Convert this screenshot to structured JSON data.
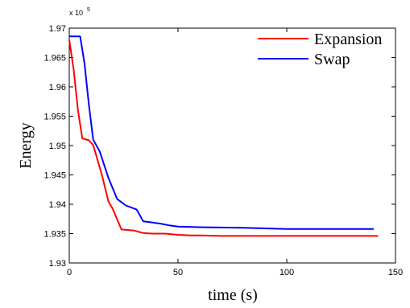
{
  "chart_data": {
    "type": "line",
    "title": "",
    "xlabel": "time (s)",
    "ylabel": "Energy",
    "xlim": [
      0,
      150
    ],
    "ylim": [
      1.93,
      1.97
    ],
    "y_scale_label": "x 10",
    "y_scale_exponent": "5",
    "xticks": [
      0,
      50,
      100,
      150
    ],
    "xtick_labels": [
      "0",
      "50",
      "100",
      "150"
    ],
    "yticks": [
      1.93,
      1.935,
      1.94,
      1.945,
      1.95,
      1.955,
      1.96,
      1.965,
      1.97
    ],
    "ytick_labels": [
      "1.93",
      "1.935",
      "1.94",
      "1.945",
      "1.95",
      "1.955",
      "1.96",
      "1.965",
      "1.97"
    ],
    "grid": false,
    "legend_position": "top-right",
    "series": [
      {
        "name": "Expansion",
        "color": "#ff0000",
        "x": [
          0,
          2,
          4,
          6,
          9,
          11,
          15,
          18,
          20,
          24,
          30,
          34,
          38,
          44,
          50,
          56,
          60,
          70,
          80,
          100,
          120,
          142
        ],
        "y": [
          1.968,
          1.963,
          1.956,
          1.9512,
          1.9509,
          1.9501,
          1.945,
          1.9405,
          1.9392,
          1.9357,
          1.9355,
          1.9351,
          1.935,
          1.935,
          1.9348,
          1.9347,
          1.9347,
          1.9346,
          1.9346,
          1.9346,
          1.9346,
          1.9346
        ]
      },
      {
        "name": "Swap",
        "color": "#0000ff",
        "x": [
          0,
          1,
          5,
          7,
          9,
          11,
          14,
          18,
          22,
          26,
          31,
          34,
          36,
          42,
          46,
          50,
          60,
          80,
          100,
          120,
          140
        ],
        "y": [
          1.9686,
          1.9686,
          1.9686,
          1.964,
          1.957,
          1.951,
          1.949,
          1.9445,
          1.9409,
          1.9398,
          1.9391,
          1.9371,
          1.937,
          1.9367,
          1.9364,
          1.9362,
          1.9361,
          1.936,
          1.9358,
          1.9358,
          1.9358
        ]
      }
    ]
  }
}
